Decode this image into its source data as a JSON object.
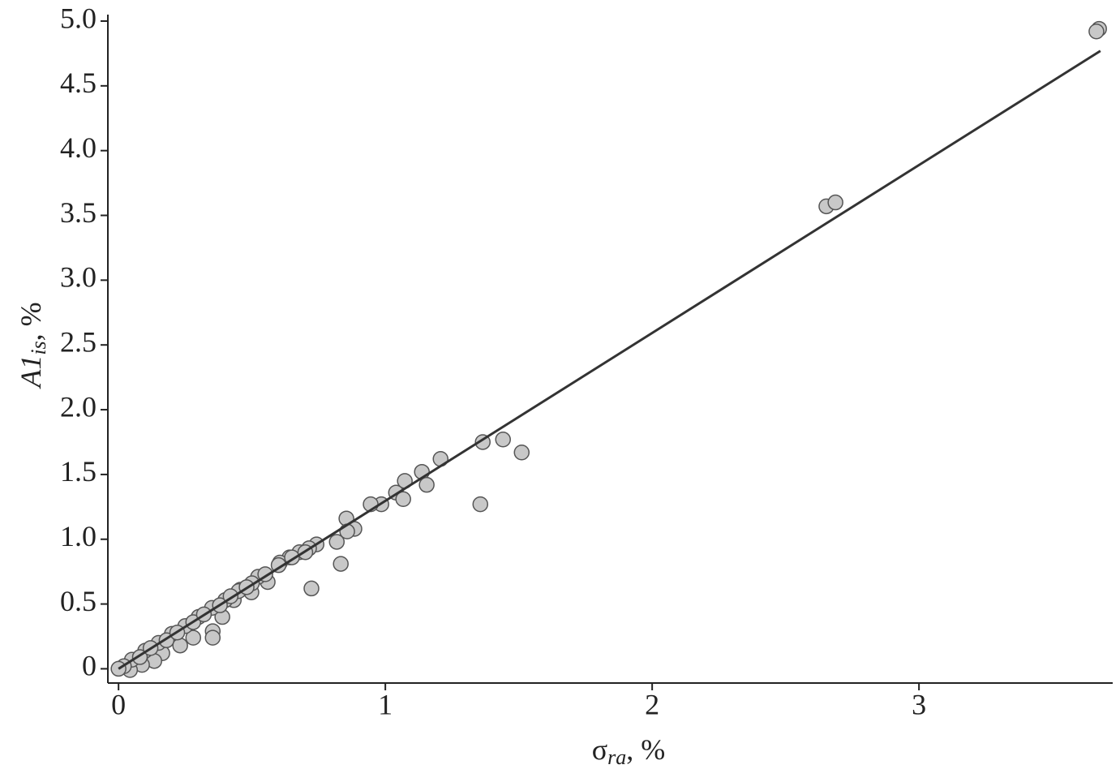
{
  "chart_data": {
    "type": "scatter",
    "xlabel": {
      "main": "σ",
      "sub": "ra",
      "suffix": ", %"
    },
    "ylabel": {
      "main": "A1",
      "sub": "is",
      "suffix": ", %"
    },
    "xlim": [
      -0.04,
      3.72
    ],
    "ylim": [
      -0.11,
      5.05
    ],
    "xticks": [
      0,
      1,
      2,
      3
    ],
    "yticks": [
      0,
      0.5,
      {
        "value": 1,
        "label": "1.0"
      },
      1.5,
      {
        "value": 2,
        "label": "2.0"
      },
      2.5,
      {
        "value": 3,
        "label": "3.0"
      },
      3.5,
      {
        "value": 4,
        "label": "4.0"
      },
      4.5,
      {
        "value": 5,
        "label": "5.0"
      }
    ],
    "point_color": "#c8c8c8",
    "line_color": "#333333",
    "points": {
      "x": [
        3.675,
        3.665,
        2.653,
        2.687,
        1.365,
        1.441,
        1.511,
        1.356,
        1.207,
        1.137,
        1.073,
        1.155,
        1.04,
        1.067,
        0.985,
        0.945,
        0.854,
        0.884,
        0.857,
        0.818,
        0.833,
        0.723,
        0.742,
        0.714,
        0.678,
        0.641,
        0.605,
        0.559,
        0.523,
        0.498,
        0.456,
        0.432,
        0.389,
        0.353,
        0.353,
        0.28,
        0.231,
        0.164,
        0.134,
        0.088,
        0.043,
        0.05,
        0.1,
        0.15,
        0.2,
        0.25,
        0.3,
        0.35,
        0.4,
        0.45,
        0.5,
        0.55,
        0.02,
        0.0,
        0.08,
        0.12,
        0.18,
        0.22,
        0.28,
        0.32,
        0.38,
        0.42,
        0.48,
        0.6,
        0.65,
        0.7
      ],
      "y": [
        4.94,
        4.92,
        3.57,
        3.6,
        1.75,
        1.77,
        1.67,
        1.27,
        1.62,
        1.52,
        1.45,
        1.42,
        1.36,
        1.31,
        1.27,
        1.27,
        1.16,
        1.08,
        1.06,
        0.98,
        0.81,
        0.62,
        0.96,
        0.93,
        0.9,
        0.86,
        0.82,
        0.67,
        0.71,
        0.59,
        0.61,
        0.53,
        0.4,
        0.29,
        0.24,
        0.24,
        0.18,
        0.12,
        0.06,
        0.03,
        -0.01,
        0.07,
        0.14,
        0.2,
        0.27,
        0.33,
        0.4,
        0.47,
        0.53,
        0.6,
        0.66,
        0.73,
        0.02,
        0.0,
        0.09,
        0.16,
        0.22,
        0.28,
        0.36,
        0.42,
        0.49,
        0.56,
        0.63,
        0.8,
        0.86,
        0.9
      ]
    },
    "fit_line": {
      "x": [
        0,
        3.68
      ],
      "y": [
        0,
        4.77
      ]
    }
  }
}
